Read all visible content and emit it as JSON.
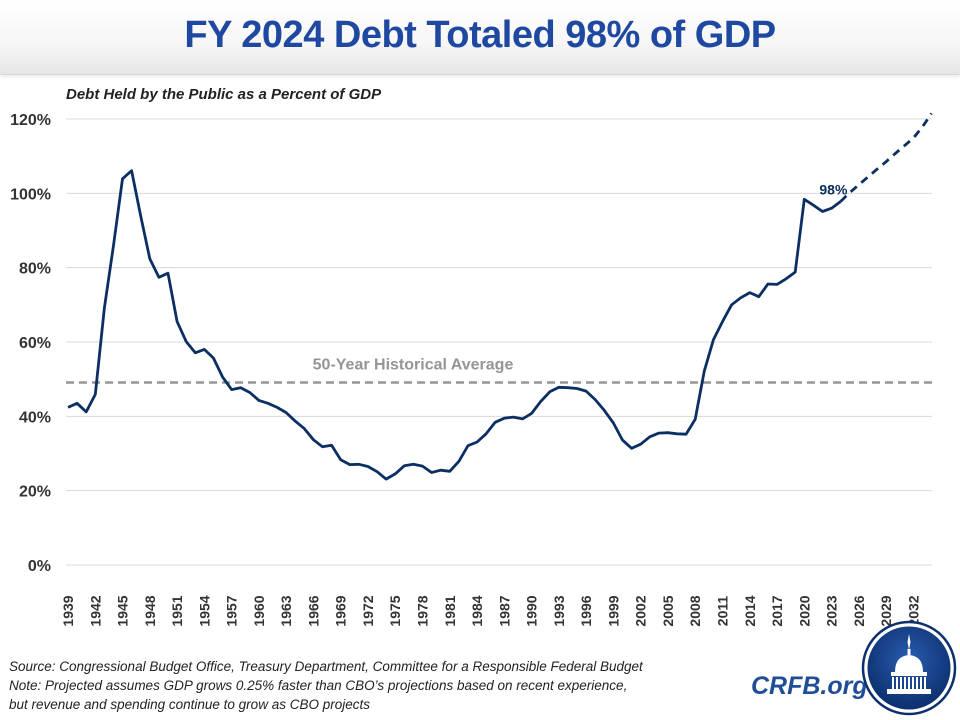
{
  "header": {
    "title": "FY 2024 Debt Totaled 98% of GDP"
  },
  "subtitle": "Debt Held by the Public as a Percent of GDP",
  "footer": {
    "source": "Source: Congressional Budget Office, Treasury Department, Committee for a Responsible Federal Budget",
    "note_line1": "Note: Projected assumes GDP grows 0.25% faster than CBO’s projections based on recent experience,",
    "note_line2": "but revenue and spending continue to grow as CBO projects"
  },
  "brand": {
    "site": "CRFB.org",
    "logo_icon": "capitol-dome-icon"
  },
  "colors": {
    "title": "#1f48a0",
    "line": "#0b2f62",
    "average": "#959595",
    "grid": "#d9d9d9",
    "brand": "#1f4e96"
  },
  "chart_data": {
    "type": "line",
    "title": "FY 2024 Debt Totaled 98% of GDP",
    "subtitle": "Debt Held by the Public as a Percent of GDP",
    "xlabel": "",
    "ylabel": "",
    "ylim": [
      0,
      120
    ],
    "xlim": [
      1939,
      2034
    ],
    "grid": true,
    "y_ticks": [
      "0%",
      "20%",
      "40%",
      "60%",
      "80%",
      "100%",
      "120%"
    ],
    "y_tick_values": [
      0,
      20,
      40,
      60,
      80,
      100,
      120
    ],
    "x_ticks": [
      "1939",
      "1942",
      "1945",
      "1948",
      "1951",
      "1954",
      "1957",
      "1960",
      "1963",
      "1966",
      "1969",
      "1972",
      "1975",
      "1978",
      "1981",
      "1984",
      "1987",
      "1990",
      "1993",
      "1996",
      "1999",
      "2002",
      "2005",
      "2008",
      "2011",
      "2014",
      "2017",
      "2020",
      "2023",
      "2026",
      "2029",
      "2032"
    ],
    "series": [
      {
        "name": "Historical",
        "style": "solid",
        "x": [
          1939,
          1940,
          1941,
          1942,
          1943,
          1944,
          1945,
          1946,
          1947,
          1948,
          1949,
          1950,
          1951,
          1952,
          1953,
          1954,
          1955,
          1956,
          1957,
          1958,
          1959,
          1960,
          1961,
          1962,
          1963,
          1964,
          1965,
          1966,
          1967,
          1968,
          1969,
          1970,
          1971,
          1972,
          1973,
          1974,
          1975,
          1976,
          1977,
          1978,
          1979,
          1980,
          1981,
          1982,
          1983,
          1984,
          1985,
          1986,
          1987,
          1988,
          1989,
          1990,
          1991,
          1992,
          1993,
          1994,
          1995,
          1996,
          1997,
          1998,
          1999,
          2000,
          2001,
          2002,
          2003,
          2004,
          2005,
          2006,
          2007,
          2008,
          2009,
          2010,
          2011,
          2012,
          2013,
          2014,
          2015,
          2016,
          2017,
          2018,
          2019,
          2020,
          2021,
          2022,
          2023,
          2024
        ],
        "values": [
          42.4,
          43.5,
          41.2,
          45.9,
          69.2,
          86.0,
          103.9,
          106.1,
          93.9,
          82.4,
          77.4,
          78.5,
          65.5,
          60.1,
          57.1,
          58.0,
          55.7,
          50.6,
          47.2,
          47.7,
          46.4,
          44.3,
          43.5,
          42.4,
          41.0,
          38.7,
          36.7,
          33.7,
          31.8,
          32.2,
          28.3,
          27.0,
          27.1,
          26.5,
          25.1,
          23.1,
          24.5,
          26.7,
          27.1,
          26.6,
          24.9,
          25.5,
          25.2,
          27.9,
          32.1,
          33.1,
          35.3,
          38.4,
          39.5,
          39.8,
          39.3,
          40.8,
          44.0,
          46.6,
          47.8,
          47.7,
          47.5,
          46.8,
          44.5,
          41.6,
          38.2,
          33.6,
          31.4,
          32.5,
          34.5,
          35.5,
          35.6,
          35.3,
          35.2,
          39.2,
          52.2,
          60.6,
          65.5,
          70.0,
          71.9,
          73.3,
          72.2,
          75.6,
          75.5,
          77.0,
          78.8,
          98.4,
          96.8,
          95.1,
          96.0,
          97.8
        ]
      },
      {
        "name": "Projected",
        "style": "dashed",
        "x": [
          2024,
          2025,
          2026,
          2027,
          2028,
          2029,
          2030,
          2031,
          2032,
          2033,
          2034
        ],
        "values": [
          97.8,
          100.2,
          102.3,
          104.4,
          106.5,
          108.5,
          110.7,
          112.8,
          114.9,
          117.9,
          121.5
        ]
      },
      {
        "name": "50-Year Historical Average",
        "style": "dashed-gray",
        "x": [
          1939,
          2034
        ],
        "values": [
          49.1,
          49.1
        ]
      }
    ],
    "annotations": [
      {
        "text": "98%",
        "x": 2024,
        "y": 97.8
      },
      {
        "text": "50-Year Historical Average",
        "x": 1980,
        "y": 49.1
      }
    ]
  }
}
